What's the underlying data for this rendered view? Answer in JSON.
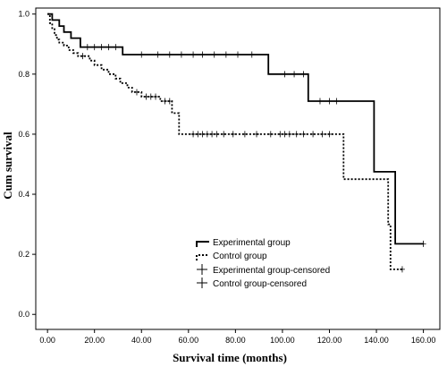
{
  "chart_data": {
    "type": "line",
    "title": "",
    "xlabel": "Survival time (months)",
    "ylabel": "Cum survival",
    "xlim": [
      -5,
      167
    ],
    "ylim": [
      -0.05,
      1.02
    ],
    "x_ticks": [
      0,
      20,
      40,
      60,
      80,
      100,
      120,
      140,
      160
    ],
    "x_tick_labels": [
      "0.00",
      "20.00",
      "40.00",
      "60.00",
      "80.00",
      "100.00",
      "120.00",
      "140.00",
      "160.00"
    ],
    "y_ticks": [
      0,
      0.2,
      0.4,
      0.6,
      0.8,
      1.0
    ],
    "y_tick_labels": [
      "0.0",
      "0.2",
      "0.4",
      "0.6",
      "0.8",
      "1.0"
    ],
    "grid": false,
    "legend_position": "bottom-center",
    "series": [
      {
        "name": "Experimental group",
        "style": "solid",
        "color": "#000000",
        "step_points": [
          [
            0,
            1.0
          ],
          [
            2,
            0.98
          ],
          [
            5,
            0.96
          ],
          [
            7,
            0.94
          ],
          [
            10,
            0.92
          ],
          [
            14,
            0.89
          ],
          [
            32,
            0.865
          ],
          [
            94,
            0.8
          ],
          [
            111,
            0.71
          ],
          [
            139,
            0.475
          ],
          [
            148,
            0.235
          ],
          [
            160,
            0.235
          ]
        ],
        "censored": [
          17,
          20,
          23,
          26,
          29,
          40,
          47,
          52,
          57,
          62,
          66,
          71,
          76,
          81,
          87,
          101,
          105,
          109,
          116,
          120,
          123,
          160
        ]
      },
      {
        "name": "Control group",
        "style": "dashed",
        "color": "#000000",
        "step_points": [
          [
            0,
            1.0
          ],
          [
            1,
            0.97
          ],
          [
            2,
            0.95
          ],
          [
            3,
            0.93
          ],
          [
            4,
            0.915
          ],
          [
            5,
            0.905
          ],
          [
            7,
            0.895
          ],
          [
            9,
            0.88
          ],
          [
            11,
            0.87
          ],
          [
            13,
            0.86
          ],
          [
            18,
            0.845
          ],
          [
            20,
            0.83
          ],
          [
            23,
            0.815
          ],
          [
            26,
            0.8
          ],
          [
            29,
            0.785
          ],
          [
            31,
            0.77
          ],
          [
            34,
            0.755
          ],
          [
            36,
            0.74
          ],
          [
            40,
            0.725
          ],
          [
            48,
            0.71
          ],
          [
            53,
            0.67
          ],
          [
            56,
            0.6
          ],
          [
            126,
            0.45
          ],
          [
            145,
            0.3
          ],
          [
            146,
            0.15
          ],
          [
            151,
            0.15
          ]
        ],
        "censored": [
          15,
          38,
          42,
          44,
          46,
          50,
          52,
          62,
          64,
          66,
          68,
          70,
          72,
          75,
          79,
          84,
          89,
          95,
          99,
          101,
          103,
          106,
          109,
          113,
          117,
          120,
          151
        ]
      }
    ],
    "legend_entries": [
      "Experimental group",
      "Control group",
      "Experimental group-censored",
      "Control group-censored"
    ]
  }
}
